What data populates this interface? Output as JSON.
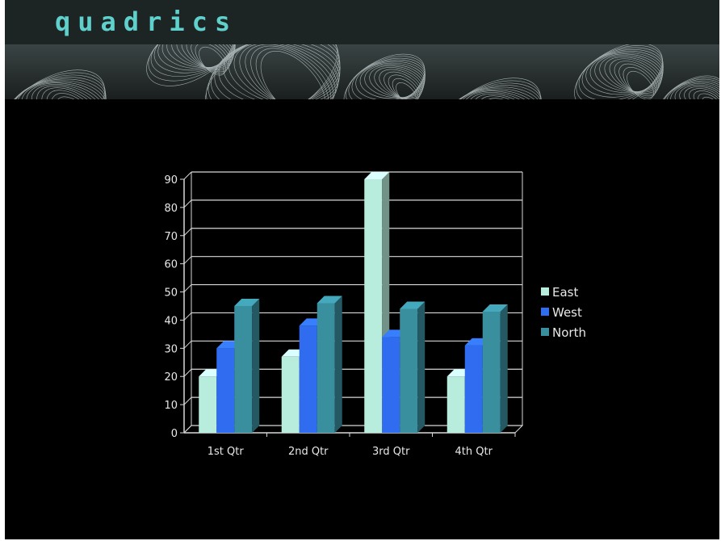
{
  "title": "quadrics",
  "colors": {
    "east": "#b8ecdc",
    "west": "#2f6cf0",
    "north": "#3a8f9f",
    "grid": "#d8d8d8"
  },
  "chart_data": {
    "type": "bar",
    "categories": [
      "1st Qtr",
      "2nd Qtr",
      "3rd Qtr",
      "4th Qtr"
    ],
    "series": [
      {
        "name": "East",
        "values": [
          20,
          27,
          90,
          20
        ]
      },
      {
        "name": "West",
        "values": [
          30,
          38,
          34,
          31
        ]
      },
      {
        "name": "North",
        "values": [
          45,
          46,
          44,
          43
        ]
      }
    ],
    "yticks": [
      0,
      10,
      20,
      30,
      40,
      50,
      60,
      70,
      80,
      90
    ],
    "ylim": [
      0,
      90
    ],
    "grid": true,
    "legend": "right",
    "three_d": true
  }
}
